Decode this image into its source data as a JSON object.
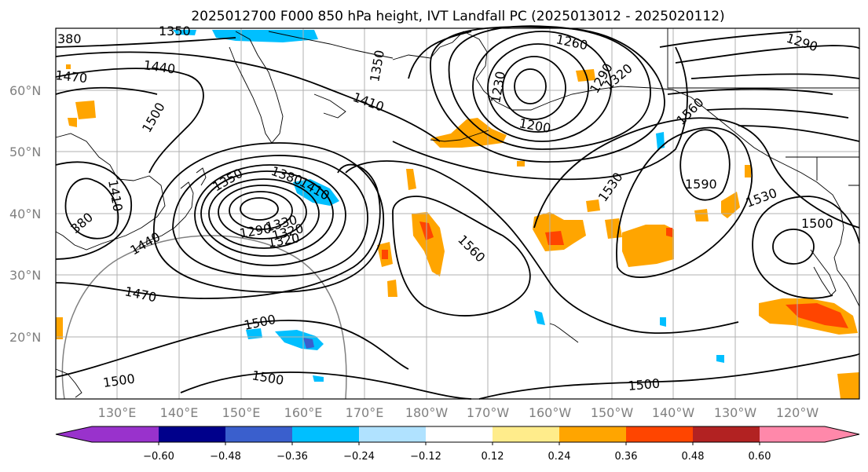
{
  "title": "2025012700 F000 850 hPa height, IVT Landfall PC (2025013012 - 2025020112)",
  "lat_labels": [
    "60°N",
    "50°N",
    "40°N",
    "30°N",
    "20°N"
  ],
  "lon_labels": [
    "130°E",
    "140°E",
    "150°E",
    "160°E",
    "170°E",
    "180°W",
    "170°W",
    "160°W",
    "150°W",
    "140°W",
    "130°W",
    "120°W"
  ],
  "colorbar": {
    "colors": [
      "#9932cc",
      "#00008b",
      "#3a5fcd",
      "#00bfff",
      "#b0e2ff",
      "#ffffff",
      "#ffec8b",
      "#ffa500",
      "#ff4500",
      "#b22222",
      "#ff88aa"
    ],
    "ticks": [
      "−0.60",
      "−0.48",
      "−0.36",
      "−0.24",
      "−0.12",
      "0.12",
      "0.24",
      "0.36",
      "0.48",
      "0.60"
    ]
  },
  "contour_labels": [
    "380",
    "1350",
    "1470",
    "1440",
    "1500",
    "1410",
    "1350",
    "1260",
    "1290",
    "1290",
    "1230",
    "1200",
    "1320",
    "1410",
    "1350",
    "1380",
    "1320",
    "1290",
    "1330",
    "1320",
    "1440",
    "1410",
    "380",
    "1470",
    "1500",
    "1500",
    "1500",
    "1560",
    "1530",
    "1590",
    "1530",
    "1500",
    "1500",
    "1560"
  ]
}
